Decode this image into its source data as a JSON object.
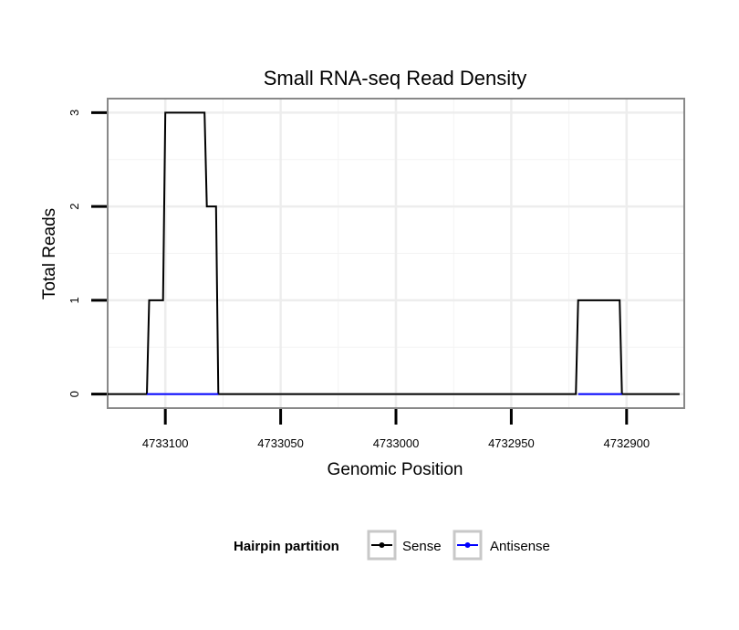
{
  "chart_data": {
    "type": "line",
    "title": "Small RNA-seq Read Density",
    "xlabel": "Genomic Position",
    "ylabel": "Total Reads",
    "x_reversed": true,
    "xlim": [
      4733125,
      4732875
    ],
    "ylim": [
      -0.15,
      3.15
    ],
    "x_ticks": [
      4733100,
      4733050,
      4733000,
      4732950,
      4732900
    ],
    "x_tick_labels": [
      "4733100",
      "4733050",
      "4733000",
      "4732950",
      "4732900"
    ],
    "y_ticks": [
      0,
      1,
      2,
      3
    ],
    "y_tick_labels": [
      "0",
      "1",
      "2",
      "3"
    ],
    "grid": true,
    "series": [
      {
        "name": "Sense",
        "color": "#000000",
        "x": [
          4733125,
          4733108,
          4733107,
          4733101,
          4733100,
          4733083,
          4733082,
          4733078,
          4733077,
          4732922,
          4732921,
          4732903,
          4732902,
          4732877
        ],
        "y": [
          0,
          0,
          1,
          1,
          3,
          3,
          2,
          2,
          0,
          0,
          1,
          1,
          0,
          0
        ]
      },
      {
        "name": "Antisense",
        "color": "#0000ff",
        "x": [
          4733108,
          4733077,
          4732921,
          4732902
        ],
        "y": [
          0,
          0,
          0,
          0
        ],
        "segments": [
          [
            0,
            1
          ],
          [
            2,
            3
          ]
        ]
      }
    ],
    "legend": {
      "title": "Hairpin partition",
      "position": "bottom",
      "entries": [
        "Sense",
        "Antisense"
      ]
    }
  }
}
